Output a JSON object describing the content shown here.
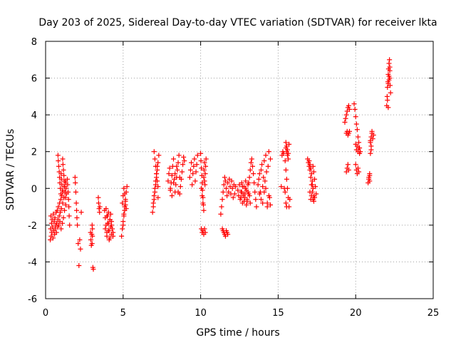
{
  "chart_data": {
    "type": "scatter",
    "title": "Day 203 of 2025, Sidereal Day-to-day VTEC variation (SDTVAR) for receiver lkta",
    "xlabel": "GPS time / hours",
    "ylabel": "SDTVAR / TECUs",
    "xlim": [
      0,
      25
    ],
    "ylim": [
      -6,
      8
    ],
    "xticks": [
      0,
      5,
      10,
      15,
      20,
      25
    ],
    "yticks": [
      -6,
      -4,
      -2,
      0,
      2,
      4,
      6,
      8
    ],
    "grid": true,
    "marker": "+",
    "color": "#ff0000",
    "series": [
      {
        "name": "SDTVAR",
        "x": [
          0.3,
          0.32,
          0.34,
          0.36,
          0.38,
          0.4,
          0.42,
          0.45,
          0.48,
          0.5,
          0.52,
          0.55,
          0.58,
          0.6,
          0.62,
          0.65,
          0.68,
          0.7,
          0.72,
          0.75,
          0.78,
          0.8,
          0.82,
          0.85,
          0.88,
          0.9,
          0.92,
          0.95,
          0.98,
          1.0,
          1.02,
          1.05,
          1.08,
          1.1,
          1.12,
          1.15,
          1.18,
          1.2,
          1.22,
          1.25,
          1.28,
          1.3,
          0.8,
          0.82,
          0.85,
          0.88,
          0.9,
          0.92,
          0.95,
          0.98,
          1.0,
          1.02,
          1.05,
          1.08,
          1.1,
          1.12,
          1.15,
          1.18,
          1.2,
          1.22,
          1.25,
          1.28,
          1.3,
          1.32,
          1.35,
          1.4,
          1.42,
          1.45,
          1.48,
          1.5,
          1.52,
          1.55,
          1.9,
          1.92,
          1.95,
          1.98,
          2.0,
          2.02,
          2.05,
          2.1,
          2.15,
          2.2,
          2.25,
          2.3,
          2.9,
          2.92,
          2.95,
          2.98,
          3.0,
          3.02,
          3.05,
          3.08,
          3.0,
          3.02,
          3.4,
          3.42,
          3.45,
          3.48,
          3.5,
          3.8,
          3.85,
          3.9,
          3.95,
          4.0,
          4.05,
          4.1,
          4.15,
          4.2,
          4.25,
          4.3,
          4.35,
          3.9,
          3.95,
          4.0,
          4.05,
          4.1,
          4.15,
          4.2,
          4.25,
          3.85,
          3.95,
          4.05,
          4.15,
          4.25,
          4.35,
          4.9,
          4.95,
          5.0,
          5.05,
          5.1,
          5.15,
          5.2,
          5.25,
          4.95,
          5.0,
          5.05,
          5.1,
          5.15,
          5.2,
          5.0,
          5.05,
          5.1,
          5.15,
          6.9,
          6.95,
          7.0,
          7.05,
          7.1,
          7.15,
          7.2,
          7.25,
          7.3,
          7.0,
          7.05,
          7.1,
          7.15,
          7.2,
          7.25,
          6.95,
          7.0,
          7.05,
          7.1,
          7.15,
          7.2,
          7.25,
          7.9,
          7.95,
          8.0,
          8.05,
          8.1,
          8.15,
          8.2,
          8.25,
          8.3,
          8.35,
          8.4,
          8.45,
          8.5,
          8.55,
          8.6,
          8.65,
          8.7,
          8.75,
          8.8,
          8.85,
          8.9,
          8.95,
          8.05,
          8.15,
          8.25,
          8.35,
          8.45,
          8.55,
          8.65,
          9.3,
          9.35,
          9.4,
          9.45,
          9.5,
          9.55,
          9.6,
          9.65,
          9.7,
          9.75,
          9.8,
          10.0,
          10.02,
          10.05,
          10.08,
          10.1,
          10.12,
          10.15,
          10.18,
          10.2,
          10.22,
          10.25,
          10.28,
          10.3,
          10.32,
          10.35,
          10.05,
          10.1,
          10.15,
          10.2,
          10.25,
          10.3,
          10.05,
          10.1,
          10.15,
          10.2,
          10.25,
          11.3,
          11.35,
          11.4,
          11.45,
          11.5,
          11.55,
          11.6,
          11.65,
          11.7,
          11.75,
          11.8,
          11.85,
          11.9,
          11.95,
          12.0,
          12.05,
          12.1,
          12.15,
          12.2,
          12.25,
          11.4,
          11.45,
          11.5,
          11.55,
          11.6,
          11.65,
          11.7,
          11.75,
          12.4,
          12.45,
          12.5,
          12.55,
          12.6,
          12.65,
          12.7,
          12.75,
          12.8,
          12.85,
          12.9,
          12.95,
          13.0,
          13.05,
          13.1,
          13.15,
          13.2,
          13.25,
          13.3,
          13.35,
          13.4,
          13.45,
          13.5,
          13.55,
          13.6,
          12.6,
          12.65,
          12.7,
          12.75,
          12.8,
          12.85,
          12.9,
          12.95,
          13.0,
          13.05,
          13.1,
          13.15,
          13.2,
          13.7,
          13.75,
          13.8,
          13.85,
          13.9,
          13.95,
          14.0,
          14.05,
          14.1,
          14.15,
          14.2,
          14.25,
          14.3,
          14.35,
          14.4,
          14.45,
          14.5,
          13.8,
          13.9,
          14.0,
          14.1,
          14.2,
          14.3,
          14.4,
          14.5,
          15.2,
          15.25,
          15.3,
          15.35,
          15.4,
          15.45,
          15.5,
          15.55,
          15.6,
          15.65,
          15.7,
          15.75,
          15.5,
          15.55,
          15.6,
          15.65,
          15.7,
          15.5,
          15.55,
          15.6,
          15.65,
          15.45,
          15.5,
          15.55,
          16.9,
          16.95,
          17.0,
          17.05,
          17.1,
          17.15,
          17.2,
          17.25,
          17.3,
          17.35,
          17.4,
          17.45,
          17.0,
          17.05,
          17.1,
          17.15,
          17.2,
          17.25,
          17.3,
          17.35,
          17.05,
          17.1,
          17.15,
          17.2,
          17.25,
          17.3,
          19.3,
          19.35,
          19.4,
          19.45,
          19.5,
          19.55,
          19.6,
          19.4,
          19.45,
          19.5,
          19.55,
          19.6,
          19.4,
          19.45,
          19.5,
          19.55,
          19.9,
          19.95,
          20.0,
          20.05,
          20.1,
          20.15,
          20.2,
          20.25,
          20.3,
          20.0,
          20.05,
          20.1,
          20.15,
          20.2,
          20.25,
          20.0,
          20.05,
          20.1,
          20.15,
          20.2,
          20.8,
          20.85,
          20.9,
          20.95,
          21.0,
          21.05,
          21.1,
          21.15,
          20.85,
          20.9,
          20.95,
          21.0,
          21.05,
          20.9,
          20.95,
          21.0,
          22.0,
          22.03,
          22.05,
          22.08,
          22.1,
          22.12,
          22.15,
          22.18,
          22.2,
          22.22,
          22.25,
          22.05,
          22.1,
          22.15,
          22.2,
          22.1,
          22.15,
          22.2
        ],
        "y": [
          -2.8,
          -2.2,
          -1.5,
          -2.6,
          -1.9,
          -2.4,
          -1.7,
          -2.1,
          -2.7,
          -1.4,
          -2.3,
          -1.8,
          -2.5,
          -1.6,
          -2.2,
          -2.0,
          -1.3,
          -2.4,
          -1.9,
          -1.2,
          -2.1,
          -1.7,
          -1.0,
          -2.0,
          -1.5,
          -0.8,
          -1.8,
          -1.3,
          -0.6,
          -2.2,
          -1.1,
          -0.4,
          -1.9,
          -0.8,
          -0.2,
          -1.6,
          -0.5,
          0.1,
          -1.2,
          -0.2,
          0.4,
          -0.9,
          1.8,
          1.5,
          1.2,
          0.9,
          0.6,
          0.3,
          0.0,
          -0.3,
          0.8,
          0.5,
          0.2,
          -0.1,
          1.6,
          1.3,
          1.0,
          0.7,
          0.4,
          0.1,
          -0.2,
          -0.5,
          0.3,
          0.0,
          -0.3,
          0.5,
          0.2,
          -0.2,
          -0.6,
          -1.0,
          -1.5,
          -2.0,
          0.6,
          0.3,
          -0.2,
          -0.8,
          -1.2,
          -1.6,
          -2.0,
          -3.0,
          -4.2,
          -2.8,
          -3.3,
          -1.3,
          -2.4,
          -2.8,
          -3.1,
          -2.5,
          -2.0,
          -2.2,
          -4.3,
          -4.4,
          -3.0,
          -2.6,
          -0.5,
          -0.8,
          -1.1,
          -1.3,
          -1.0,
          -1.2,
          -1.6,
          -2.0,
          -2.4,
          -1.5,
          -1.9,
          -2.3,
          -2.7,
          -1.4,
          -1.8,
          -2.2,
          -2.6,
          -1.1,
          -1.5,
          -1.9,
          -2.3,
          -2.8,
          -1.7,
          -2.1,
          -2.5,
          -2.2,
          -2.6,
          -1.3,
          -1.7,
          -2.0,
          -2.4,
          -2.6,
          -2.2,
          -1.8,
          -1.4,
          -1.0,
          -0.6,
          -0.2,
          0.1,
          -0.8,
          -0.4,
          0.0,
          -0.3,
          -0.7,
          -1.1,
          -2.0,
          -1.5,
          -1.2,
          -0.9,
          -1.3,
          -1.0,
          -0.6,
          -0.2,
          0.2,
          0.6,
          1.0,
          1.4,
          1.8,
          2.0,
          1.6,
          1.2,
          0.8,
          0.4,
          0.1,
          -0.8,
          -0.4,
          0.0,
          0.4,
          0.8,
          1.2,
          -0.5,
          0.4,
          0.8,
          1.1,
          -0.1,
          0.3,
          0.7,
          1.2,
          1.6,
          0.5,
          -0.2,
          0.2,
          0.6,
          1.0,
          1.4,
          1.8,
          -0.3,
          0.1,
          0.5,
          0.9,
          1.3,
          1.7,
          1.5,
          0.0,
          -0.4,
          0.3,
          0.8,
          1.2,
          -0.2,
          0.6,
          0.6,
          1.0,
          1.4,
          0.2,
          0.8,
          1.2,
          1.6,
          0.4,
          0.9,
          1.3,
          1.8,
          1.9,
          1.5,
          1.1,
          0.7,
          0.3,
          -0.1,
          -0.5,
          -0.9,
          0.6,
          1.0,
          1.4,
          0.2,
          0.8,
          1.2,
          1.6,
          -2.2,
          -2.4,
          -2.3,
          -2.5,
          -2.2,
          -2.4,
          0.0,
          -0.4,
          -0.8,
          -1.2,
          0.4,
          -1.4,
          -1.0,
          -0.6,
          -0.2,
          0.2,
          0.6,
          0.4,
          0.0,
          -0.4,
          0.3,
          -0.2,
          0.5,
          0.1,
          -0.3,
          0.4,
          0.0,
          -0.5,
          0.2,
          -0.3,
          0.1,
          -2.2,
          -2.3,
          -2.4,
          -2.5,
          -2.6,
          -2.3,
          -2.4,
          -2.5,
          -0.1,
          -0.4,
          0.2,
          -0.6,
          -0.2,
          0.3,
          -0.8,
          -0.3,
          0.1,
          -0.5,
          0.4,
          -0.1,
          -0.7,
          0.2,
          -0.3,
          0.6,
          1.0,
          1.4,
          1.6,
          1.2,
          0.8,
          0.3,
          -0.2,
          -0.6,
          -1.0,
          -0.5,
          -0.2,
          0.1,
          -0.4,
          -0.7,
          -0.3,
          0.0,
          -0.9,
          -0.6,
          -0.2,
          0.3,
          -0.4,
          -0.8,
          0.2,
          0.5,
          0.8,
          -0.2,
          1.0,
          1.3,
          0.1,
          0.6,
          1.5,
          0.4,
          1.8,
          0.9,
          -0.8,
          1.2,
          2.0,
          -0.5,
          1.6,
          -0.3,
          -0.6,
          -0.8,
          -0.2,
          0.0,
          -1.0,
          -0.4,
          -0.9,
          0.1,
          1.8,
          2.0,
          1.9,
          0.0,
          1.5,
          1.0,
          0.5,
          0.0,
          -0.5,
          -1.0,
          -0.6,
          2.5,
          2.3,
          2.1,
          1.9,
          2.4,
          2.2,
          2.0,
          1.8,
          1.6,
          -0.2,
          -0.8,
          -1.0,
          1.6,
          1.4,
          1.2,
          1.0,
          0.6,
          0.2,
          -0.2,
          -0.6,
          0.9,
          0.5,
          0.1,
          -0.3,
          1.5,
          1.3,
          1.1,
          0.8,
          0.4,
          0.0,
          -0.4,
          -0.5,
          -0.2,
          -0.6,
          -0.4,
          0.2,
          1.2,
          -0.7,
          3.6,
          3.8,
          4.0,
          4.2,
          4.4,
          4.5,
          4.3,
          3.0,
          3.1,
          2.9,
          3.0,
          3.1,
          0.9,
          1.1,
          1.3,
          1.0,
          4.6,
          4.3,
          3.9,
          3.5,
          3.2,
          2.8,
          2.5,
          2.2,
          2.0,
          2.4,
          2.1,
          2.3,
          2.0,
          2.2,
          1.9,
          1.3,
          1.0,
          0.8,
          1.1,
          0.9,
          0.3,
          0.5,
          0.8,
          2.6,
          2.8,
          3.0,
          2.7,
          2.9,
          0.6,
          0.4,
          2.5,
          2.3,
          3.1,
          0.7,
          1.9,
          2.1,
          4.5,
          5.0,
          5.5,
          5.8,
          6.2,
          6.5,
          6.8,
          7.0,
          6.0,
          5.6,
          5.2,
          4.8,
          4.4,
          5.9,
          6.4,
          5.7,
          6.1,
          6.6
        ]
      }
    ]
  }
}
